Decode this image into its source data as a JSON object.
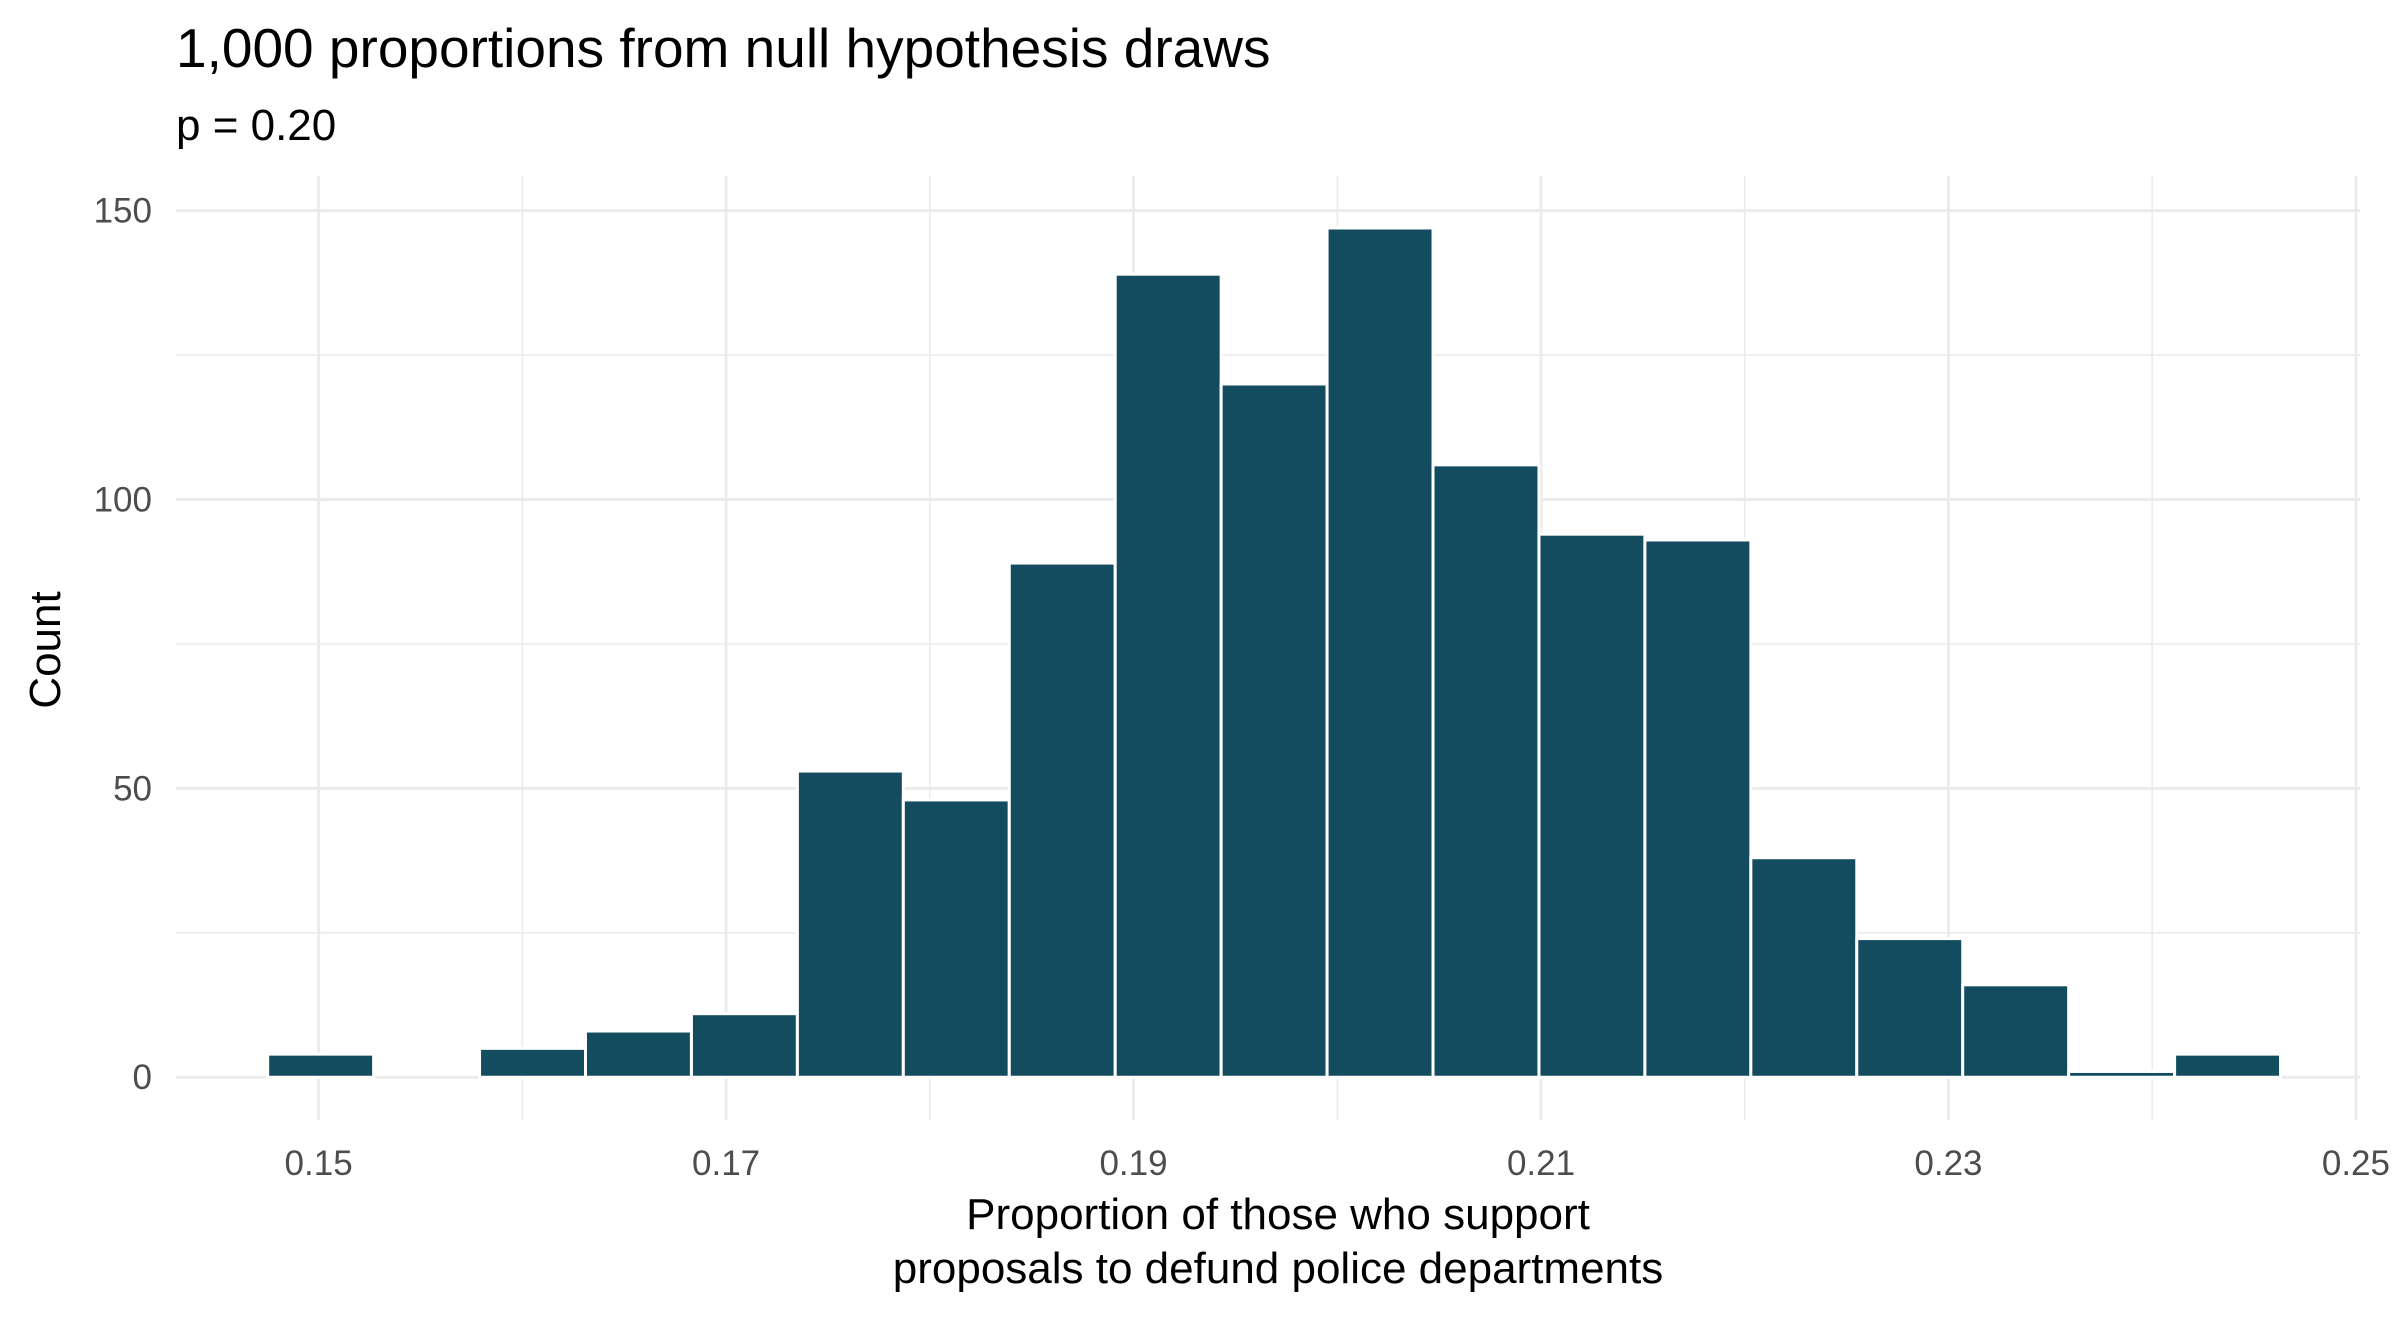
{
  "chart_data": {
    "type": "bar",
    "title": "1,000 proportions from null hypothesis draws",
    "subtitle": "p = 0.20",
    "xlabel_line1": "Proportion of those who support",
    "xlabel_line2": "proposals to defund police departments",
    "ylabel": "Count",
    "xlim": [
      0.143,
      0.2502
    ],
    "ylim": [
      -7.4,
      156
    ],
    "x_ticks": [
      {
        "value": 0.15,
        "label": "0.15"
      },
      {
        "value": 0.17,
        "label": "0.17"
      },
      {
        "value": 0.19,
        "label": "0.19"
      },
      {
        "value": 0.21,
        "label": "0.21"
      },
      {
        "value": 0.23,
        "label": "0.23"
      },
      {
        "value": 0.25,
        "label": "0.25"
      }
    ],
    "x_minor_ticks": [
      0.16,
      0.18,
      0.2,
      0.22,
      0.24
    ],
    "y_ticks": [
      {
        "value": 0,
        "label": "0"
      },
      {
        "value": 50,
        "label": "50"
      },
      {
        "value": 100,
        "label": "100"
      },
      {
        "value": 150,
        "label": "150"
      }
    ],
    "y_minor_ticks": [
      25,
      75,
      125
    ],
    "bin_width": 0.0052,
    "bins": [
      {
        "center": 0.1501,
        "count": 4
      },
      {
        "center": 0.1553,
        "count": 0
      },
      {
        "center": 0.1605,
        "count": 5
      },
      {
        "center": 0.1657,
        "count": 8
      },
      {
        "center": 0.1709,
        "count": 11
      },
      {
        "center": 0.1761,
        "count": 53
      },
      {
        "center": 0.1813,
        "count": 48
      },
      {
        "center": 0.1865,
        "count": 89
      },
      {
        "center": 0.1917,
        "count": 139
      },
      {
        "center": 0.1969,
        "count": 120
      },
      {
        "center": 0.2021,
        "count": 147
      },
      {
        "center": 0.2073,
        "count": 106
      },
      {
        "center": 0.2125,
        "count": 94
      },
      {
        "center": 0.2177,
        "count": 93
      },
      {
        "center": 0.2229,
        "count": 38
      },
      {
        "center": 0.2281,
        "count": 24
      },
      {
        "center": 0.2333,
        "count": 16
      },
      {
        "center": 0.2385,
        "count": 1
      },
      {
        "center": 0.2437,
        "count": 4
      }
    ],
    "bar_color": "#134b5f",
    "grid": true,
    "legend": "none"
  }
}
